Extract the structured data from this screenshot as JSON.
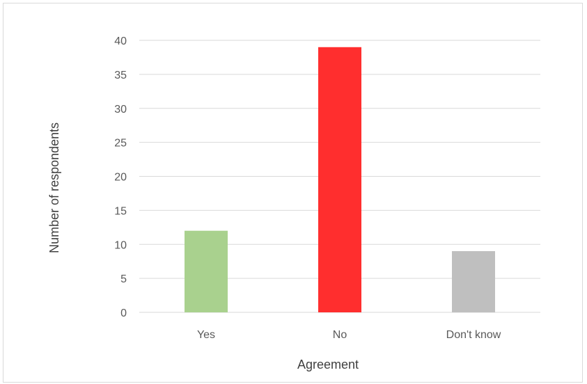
{
  "chart_data": {
    "type": "bar",
    "categories": [
      "Yes",
      "No",
      "Don't know"
    ],
    "values": [
      12,
      39,
      9
    ],
    "colors": [
      "#a9d18e",
      "#ff2e2e",
      "#bfbfbf"
    ],
    "xlabel": "Agreement",
    "ylabel": "Number of respondents",
    "ylim": [
      0,
      40
    ],
    "yticks": [
      0,
      5,
      10,
      15,
      20,
      25,
      30,
      35,
      40
    ],
    "grid": true,
    "gridColor": "#d9d9d9"
  }
}
